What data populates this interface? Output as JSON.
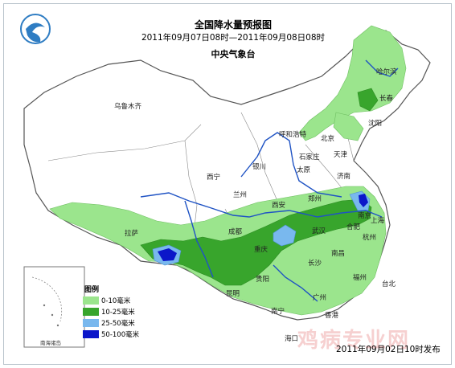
{
  "map": {
    "title": "全国降水量预报图",
    "subtitle": "2011年09月07日08时—2011年09月08日08时",
    "agency": "中央气象台",
    "release": "2011年09月02日10时发布",
    "watermark": "鸡病专业网",
    "inset_label": "南海诸岛",
    "logo_icon": "cma-swirl-icon"
  },
  "legend": {
    "title": "图例",
    "items": [
      {
        "label": "0-10毫米",
        "color": "#9be58d"
      },
      {
        "label": "10-25毫米",
        "color": "#38a52c"
      },
      {
        "label": "25-50毫米",
        "color": "#79b8ee"
      },
      {
        "label": "50-100毫米",
        "color": "#0b16c9"
      }
    ]
  },
  "cities": [
    "乌鲁木齐",
    "哈尔滨",
    "长春",
    "沈阳",
    "呼和浩特",
    "北京",
    "天津",
    "石家庄",
    "银川",
    "太原",
    "济南",
    "西宁",
    "兰州",
    "西安",
    "郑州",
    "拉萨",
    "成都",
    "武汉",
    "合肥",
    "南京",
    "上海",
    "杭州",
    "重庆",
    "长沙",
    "南昌",
    "福州",
    "贵阳",
    "台北",
    "昆明",
    "广州",
    "南宁",
    "香港",
    "海口"
  ],
  "colors": {
    "land": "#ffffff",
    "border": "#555555",
    "river": "#1f53c4",
    "light_rain": "#9be58d",
    "moderate_rain": "#38a52c",
    "heavy_rain": "#79b8ee",
    "rainstorm": "#0b16c9"
  }
}
